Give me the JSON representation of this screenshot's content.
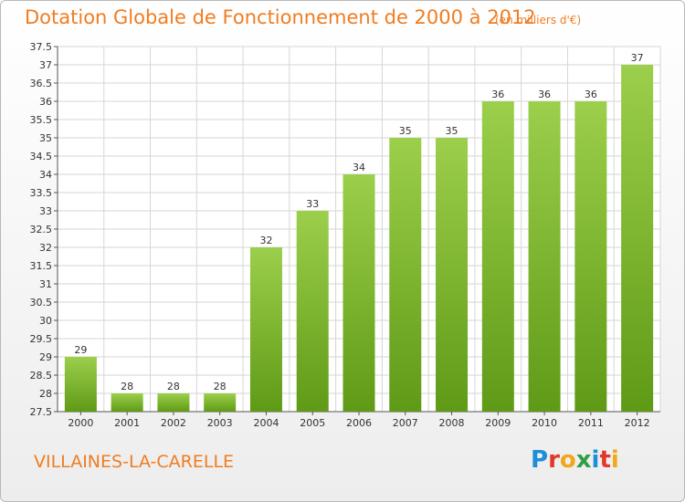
{
  "header": {
    "title": "Dotation Globale de Fonctionnement de 2000 à 2012",
    "unit": "(en milliers d'€)"
  },
  "footer": {
    "commune": "VILLAINES-LA-CARELLE",
    "logo": {
      "letters": [
        "P",
        "r",
        "o",
        "x",
        "i",
        "t",
        "i"
      ],
      "colors": [
        "#1d8fd6",
        "#e2382b",
        "#f2a71b",
        "#2f9e44",
        "#1d8fd6",
        "#e2382b",
        "#f2a71b"
      ]
    }
  },
  "chart_data": {
    "type": "bar",
    "title": "Dotation Globale de Fonctionnement de 2000 à 2012",
    "subtitle": "(en milliers d'€)",
    "xlabel": "",
    "ylabel": "",
    "categories": [
      "2000",
      "2001",
      "2002",
      "2003",
      "2004",
      "2005",
      "2006",
      "2007",
      "2008",
      "2009",
      "2010",
      "2011",
      "2012"
    ],
    "values": [
      29,
      28,
      28,
      28,
      32,
      33,
      34,
      35,
      35,
      36,
      36,
      36,
      37
    ],
    "value_labels": [
      "29",
      "28",
      "28",
      "28",
      "32",
      "33",
      "34",
      "35",
      "35",
      "36",
      "36",
      "36",
      "37"
    ],
    "ylim": [
      27.5,
      37.5
    ],
    "yticks": [
      "27.5",
      "28",
      "28.5",
      "29",
      "29.5",
      "30",
      "30.5",
      "31",
      "31.5",
      "32",
      "32.5",
      "33",
      "33.5",
      "34",
      "34.5",
      "35",
      "35.5",
      "36",
      "36.5",
      "37",
      "37.5"
    ],
    "grid": true,
    "legend": "none",
    "colors": {
      "bar_top": "#9ccf4b",
      "bar_bottom": "#5f9a16",
      "grid": "#d6d6d6"
    }
  }
}
